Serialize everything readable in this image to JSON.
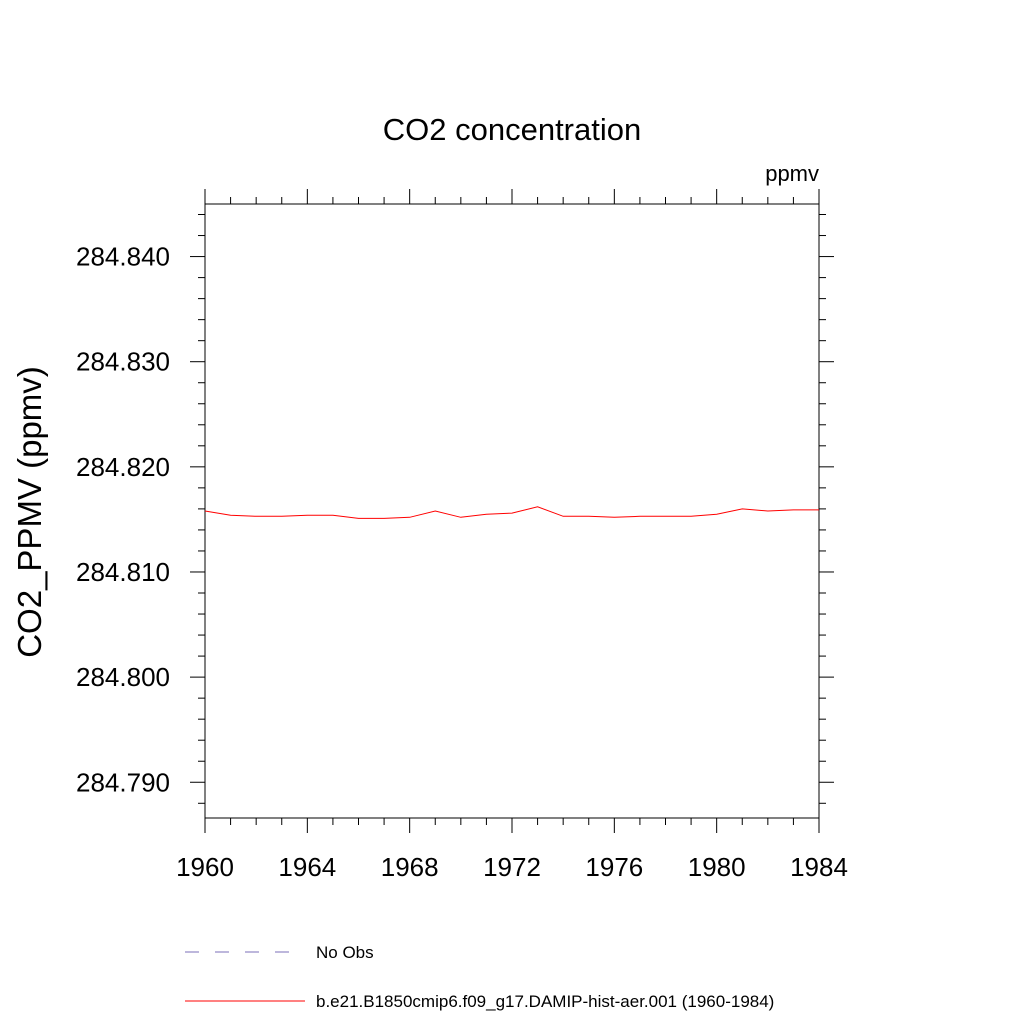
{
  "chart_data": {
    "type": "line",
    "title": "CO2 concentration",
    "units_label": "ppmv",
    "xlabel": "",
    "ylabel": "CO2_PPMV  (ppmv)",
    "xlim": [
      1960,
      1984
    ],
    "ylim": [
      284.7866,
      284.845
    ],
    "x_ticks": [
      1960,
      1964,
      1968,
      1972,
      1976,
      1980,
      1984
    ],
    "x_tick_labels": [
      "1960",
      "1964",
      "1968",
      "1972",
      "1976",
      "1980",
      "1984"
    ],
    "y_ticks": [
      284.79,
      284.8,
      284.81,
      284.82,
      284.83,
      284.84
    ],
    "y_tick_labels": [
      "284.790",
      "284.800",
      "284.810",
      "284.820",
      "284.830",
      "284.840"
    ],
    "grid": false,
    "legend_position": "bottom",
    "series": [
      {
        "name": "No Obs",
        "color": "#7b6fb8",
        "style": "dashed",
        "x": [],
        "y": []
      },
      {
        "name": "b.e21.B1850cmip6.f09_g17.DAMIP-hist-aer.001 (1960-1984)",
        "color": "#ff0000",
        "style": "solid",
        "x": [
          1960,
          1961,
          1962,
          1963,
          1964,
          1965,
          1966,
          1967,
          1968,
          1969,
          1970,
          1971,
          1972,
          1973,
          1974,
          1975,
          1976,
          1977,
          1978,
          1979,
          1980,
          1981,
          1982,
          1983,
          1984
        ],
        "y": [
          284.8158,
          284.8154,
          284.8153,
          284.8153,
          284.8154,
          284.8154,
          284.8151,
          284.8151,
          284.8152,
          284.8158,
          284.8152,
          284.8155,
          284.8156,
          284.8162,
          284.8153,
          284.8153,
          284.8152,
          284.8153,
          284.8153,
          284.8153,
          284.8155,
          284.816,
          284.8158,
          284.8159,
          284.8159
        ]
      }
    ]
  }
}
